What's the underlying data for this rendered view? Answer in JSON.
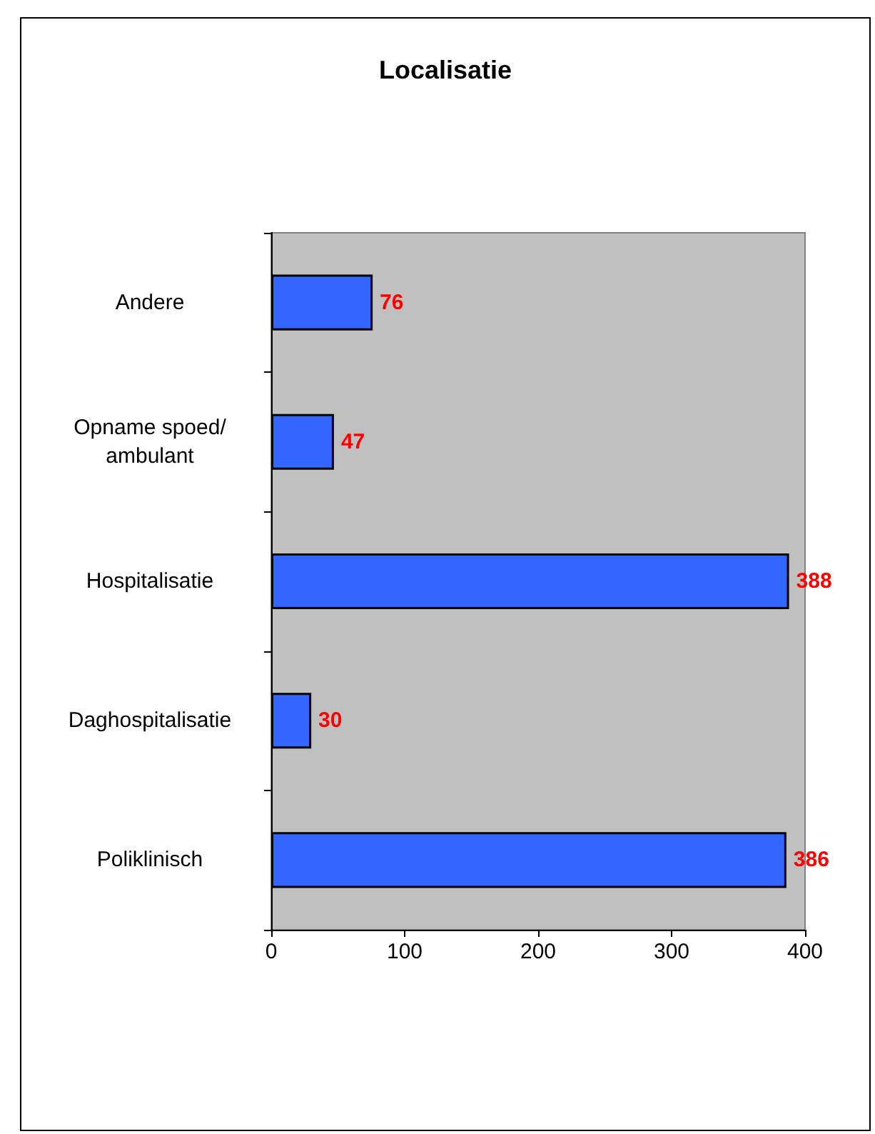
{
  "chart_data": {
    "type": "bar",
    "title": "Localisatie",
    "orientation": "horizontal",
    "categories": [
      "Andere",
      "Opname spoed/ambulant",
      "Hospitalisatie",
      "Daghospitalisatie",
      "Poliklinisch"
    ],
    "values": [
      76,
      47,
      388,
      30,
      386
    ],
    "color": "#3366ff",
    "data_labels": true,
    "xlim": [
      0,
      400
    ],
    "xticks": [
      0,
      100,
      200,
      300,
      400
    ],
    "grid": false
  }
}
